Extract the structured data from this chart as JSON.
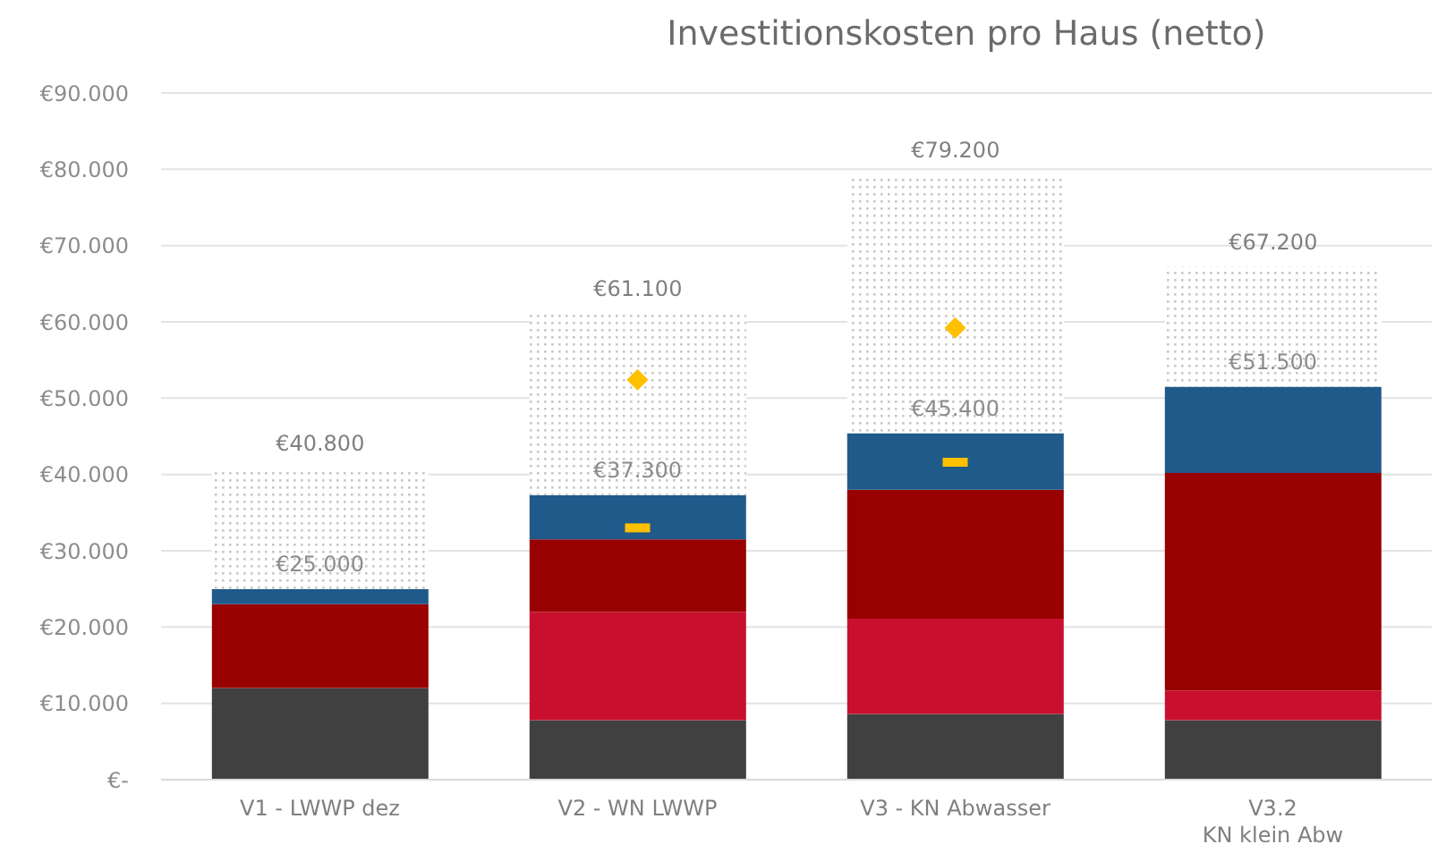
{
  "chart_data": {
    "type": "bar",
    "title": "Investitionskosten pro Haus (netto)",
    "stacked": true,
    "categories": [
      "V1 - LWWP dez",
      "V2 - WN LWWP",
      "V3 - KN Abwasser",
      "V3.2\nKN klein Abw"
    ],
    "series": [
      {
        "color": "#404040",
        "values": [
          12,
          7.8,
          8.6,
          7.8
        ]
      },
      {
        "color": "#c8102e",
        "values": [
          0,
          14.2,
          12.5,
          3.9
        ]
      },
      {
        "color": "#990000",
        "values": [
          11,
          9.5,
          16.9,
          28.5
        ]
      },
      {
        "color": "#1f5a8a",
        "values": [
          2,
          5.8,
          7.4,
          11.3
        ]
      },
      {
        "color": "#c8c8c8",
        "values": [
          15.8,
          23.8,
          33.8,
          15.7
        ]
      },
      {
        "type": "scatter",
        "color": "#ffc000",
        "marker": "diamond",
        "values": [
          null,
          52.4,
          59.2,
          null
        ]
      },
      {
        "type": "scatter",
        "color": "#ffc000",
        "marker": "square",
        "values": [
          null,
          33,
          41.6,
          null
        ]
      }
    ],
    "annotations": [
      {
        "text": "€25.000",
        "x": "V1 - LWWP dez",
        "y": 25
      },
      {
        "text": "€37.300",
        "x": "V2 - WN LWWP",
        "y": 37.3
      },
      {
        "text": "€45.400",
        "x": "V3 - KN Abwasser",
        "y": 45.4
      },
      {
        "text": "€51.500",
        "x": "V3.2\nKN klein Abw",
        "y": 51.5
      }
    ],
    "totals": [
      "€40.800",
      "€61.100",
      "€79.200",
      "€67.200"
    ],
    "ylim": [
      0,
      90
    ],
    "yticks": [
      {
        "value": 0,
        "label": "€-"
      },
      {
        "value": 10,
        "label": "€10.000"
      },
      {
        "value": 20,
        "label": "€20.000"
      },
      {
        "value": 30,
        "label": "€30.000"
      },
      {
        "value": 40,
        "label": "€40.000"
      },
      {
        "value": 50,
        "label": "€50.000"
      },
      {
        "value": 60,
        "label": "€60.000"
      },
      {
        "value": 70,
        "label": "€70.000"
      },
      {
        "value": 80,
        "label": "€80.000"
      },
      {
        "value": 90,
        "label": "€90.000"
      }
    ],
    "grid": "y",
    "legend": false
  }
}
